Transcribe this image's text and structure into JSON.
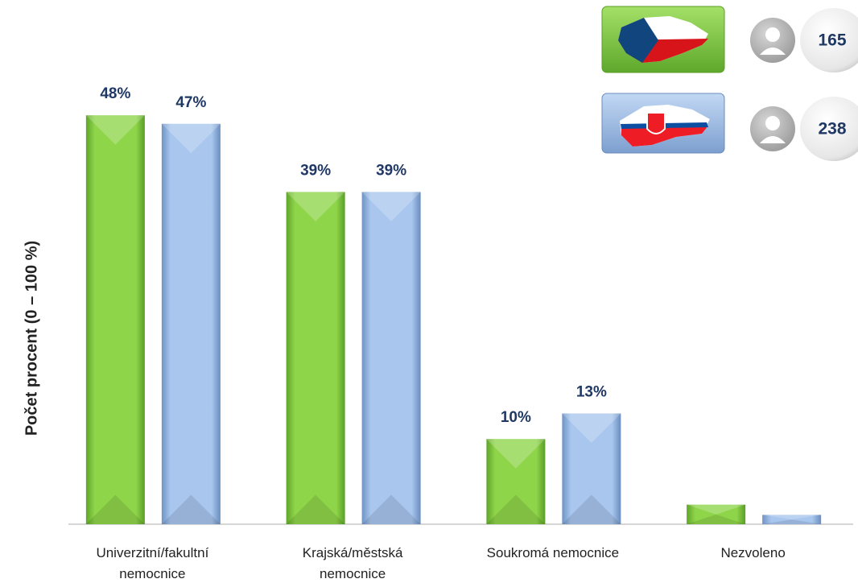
{
  "chart_data": {
    "type": "bar",
    "y_axis_label": "Počet procent  (0 – 100 %)",
    "categories": [
      "Univerzitní/fakultní nemocnice",
      "Krajská/městská nemocnice",
      "Soukromá nemocnice",
      "Nezvoleno"
    ],
    "series": [
      {
        "color": "#7ec63a",
        "n": 165,
        "values": [
          48,
          39,
          10,
          2.3
        ],
        "value_labels": [
          "48%",
          "39%",
          "10%",
          null
        ]
      },
      {
        "color": "#8fb3e0",
        "n": 238,
        "values": [
          47,
          39,
          13,
          1.1
        ],
        "value_labels": [
          "47%",
          "39%",
          "13%",
          null
        ]
      }
    ],
    "ylim": [
      0,
      50
    ]
  }
}
